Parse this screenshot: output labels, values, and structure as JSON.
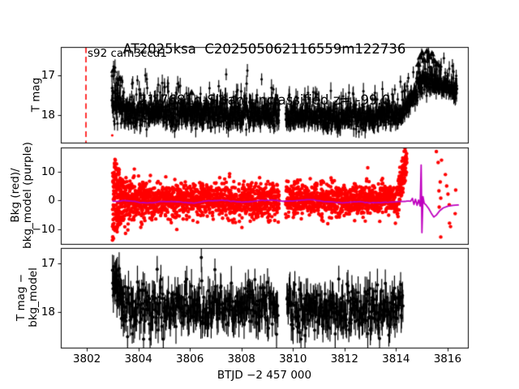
{
  "title": {
    "line1": "AT2025ksa  C202505062116559m122736",
    "line2": "21.7681g-Sloan Unclassified z= -99.0"
  },
  "colors": {
    "data_points": "#000000",
    "background_points": "#ff0000",
    "background_model": "#bf00bf",
    "marker_vline": "#ff0000",
    "spine": "#000000"
  },
  "chart_data": {
    "type": "scatter",
    "title": "AT2025ksa  C202505062116559m122736 / 21.7681g-Sloan Unclassified z= -99.0",
    "x": {
      "label": "BTJD −2 457 000",
      "ticks": [
        3802,
        3804,
        3806,
        3808,
        3810,
        3812,
        3814,
        3816
      ],
      "tick_labels": [
        "3802",
        "3804",
        "3806",
        "3808",
        "3810",
        "3812",
        "3814",
        "3816"
      ],
      "lim": [
        3800.99,
        3816.79
      ]
    },
    "panels": [
      {
        "name": "tess-magnitude",
        "ylabel_lines": [
          "T mag"
        ],
        "annotation": "s92 cam3ccd1",
        "yticks": [
          17,
          18
        ],
        "ytick_labels": [
          "17",
          "18"
        ],
        "ylim": [
          16.286,
          18.694
        ],
        "y_inverted": true,
        "vline": {
          "x": 3801.95,
          "color": "#ff0000",
          "style": "dashed"
        },
        "series": [
          {
            "name": "tess_lightcurve",
            "type": "errorbar",
            "color": "#000000",
            "marker_radius": 1.6,
            "err": 0.17,
            "spike_frac": 0.09,
            "spike_amp": [
              0.2,
              0.65
            ],
            "clamp": [
              16.35,
              18.55
            ],
            "segments": [
              {
                "t": [
                  3802.95,
                  3803.45
                ],
                "n": 70,
                "mean": [
                  17.35,
                  17.9
                ],
                "sd": [
                  0.35,
                  0.18
                ]
              },
              {
                "t": [
                  3803.45,
                  3809.45
                ],
                "n": 760,
                "mean": [
                  17.93,
                  17.96
                ],
                "sd": [
                  0.16,
                  0.16
                ]
              },
              {
                "t": [
                  3809.7,
                  3813.3
                ],
                "n": 440,
                "mean": [
                  18.04,
                  18.04
                ],
                "sd": [
                  0.13,
                  0.13
                ]
              },
              {
                "t": [
                  3813.3,
                  3814.2
                ],
                "n": 110,
                "mean": [
                  18.02,
                  17.95
                ],
                "sd": [
                  0.12,
                  0.12
                ]
              },
              {
                "t": [
                  3814.2,
                  3814.95
                ],
                "n": 95,
                "mean": [
                  17.95,
                  17.2
                ],
                "sd": [
                  0.12,
                  0.12
                ]
              },
              {
                "t": [
                  3814.95,
                  3815.55
                ],
                "n": 80,
                "mean": [
                  17.12,
                  17.08
                ],
                "sd": [
                  0.16,
                  0.16
                ]
              },
              {
                "t": [
                  3815.55,
                  3816.35
                ],
                "n": 105,
                "mean": [
                  17.18,
                  17.35
                ],
                "sd": [
                  0.1,
                  0.1
                ]
              }
            ]
          },
          {
            "name": "saturated_upper_limit_triangles",
            "type": "triangles",
            "color": "#000000",
            "size": 7,
            "points": [
              [
                3803.02,
                16.85
              ],
              [
                3803.28,
                17.06
              ],
              [
                3806.05,
                17.42
              ],
              [
                3809.33,
                17.55
              ],
              [
                3814.85,
                16.7
              ],
              [
                3814.92,
                16.52
              ],
              [
                3815.0,
                16.42
              ],
              [
                3815.08,
                16.6
              ],
              [
                3815.18,
                16.38
              ],
              [
                3815.28,
                16.52
              ],
              [
                3815.38,
                16.44
              ],
              [
                3815.48,
                16.62
              ],
              [
                3815.58,
                16.7
              ]
            ]
          },
          {
            "name": "flagged_red_point",
            "type": "dots",
            "color": "#ff0000",
            "radius": 1.6,
            "points": [
              [
                3802.97,
                18.5
              ]
            ]
          }
        ]
      },
      {
        "name": "background-vs-model",
        "ylabel_lines": [
          "Bkg (red)/",
          "bkg_model (purple)"
        ],
        "yticks": [
          10,
          0,
          -10
        ],
        "ytick_labels": [
          "10",
          "0",
          "−10"
        ],
        "ylim": [
          18.45,
          -15.07
        ],
        "y_inverted": false,
        "series": [
          {
            "name": "background_flux",
            "type": "dots",
            "color": "#ff0000",
            "radius": 2.2,
            "segments": [
              {
                "t": [
                  3802.98,
                  3803.38
                ],
                "n": 170,
                "mean": [
                  1.5,
                  0.5
                ],
                "sd": [
                  8.0,
                  3.5
                ],
                "dist": "u"
              },
              {
                "t": [
                  3803.38,
                  3804.3
                ],
                "n": 240,
                "mean": [
                  0.3,
                  0.2
                ],
                "sd": [
                  4.3,
                  3.2
                ]
              },
              {
                "t": [
                  3804.3,
                  3809.45
                ],
                "n": 1100,
                "mean": [
                  0.3,
                  0.4
                ],
                "sd": [
                  3.0,
                  3.0
                ]
              },
              {
                "t": [
                  3809.7,
                  3814.1
                ],
                "n": 950,
                "mean": [
                  0.5,
                  0.4
                ],
                "sd": [
                  2.8,
                  2.8
                ]
              },
              {
                "t": [
                  3814.1,
                  3814.4
                ],
                "n": 90,
                "mean": [
                  3.0,
                  15.0
                ],
                "sd": [
                  3.0,
                  2.5
                ]
              }
            ],
            "points": [
              [
                3815.55,
                17.2
              ],
              [
                3815.75,
                14.2
              ],
              [
                3815.62,
                13.4
              ],
              [
                3815.9,
                9.2
              ],
              [
                3815.7,
                6.6
              ],
              [
                3815.95,
                5.2
              ],
              [
                3815.65,
                3.5
              ],
              [
                3816.0,
                2.4
              ],
              [
                3815.72,
                1.0
              ],
              [
                3816.05,
                -1.3
              ],
              [
                3815.66,
                -2.1
              ],
              [
                3816.06,
                -7.7
              ],
              [
                3816.1,
                -8.9
              ],
              [
                3815.72,
                -12.5
              ],
              [
                3816.3,
                3.8
              ],
              [
                3816.28,
                -4.4
              ]
            ]
          },
          {
            "name": "background_model",
            "type": "line",
            "color": "#bf00bf",
            "width": 1.8,
            "base": {
              "t": [
                3803.0,
                3814.5
              ],
              "n": 260,
              "value": [
                0.0,
                -0.3
              ],
              "wiggle": 0.55
            },
            "vertices": [
              [
                3814.55,
                -0.1
              ],
              [
                3814.62,
                0.9
              ],
              [
                3814.68,
                -1.2
              ],
              [
                3814.74,
                0.6
              ],
              [
                3814.8,
                -1.5
              ],
              [
                3814.86,
                0.3
              ],
              [
                3814.92,
                -1.8
              ],
              [
                3814.96,
                12.5
              ],
              [
                3814.99,
                -11.0
              ],
              [
                3815.03,
                1.5
              ],
              [
                3815.08,
                -0.8
              ],
              [
                3815.15,
                -1.4
              ],
              [
                3815.25,
                -2.6
              ],
              [
                3815.35,
                -4.2
              ],
              [
                3815.45,
                -5.6
              ],
              [
                3815.55,
                -4.9
              ],
              [
                3815.68,
                -3.4
              ],
              [
                3815.82,
                -2.4
              ],
              [
                3816.0,
                -1.8
              ],
              [
                3816.2,
                -1.5
              ],
              [
                3816.4,
                -1.4
              ]
            ]
          }
        ]
      },
      {
        "name": "background-subtracted-magnitude",
        "ylabel_lines": [
          "T mag −",
          "bkg_model"
        ],
        "yticks": [
          17,
          18
        ],
        "ytick_labels": [
          "17",
          "18"
        ],
        "ylim": [
          16.683,
          18.733
        ],
        "y_inverted": true,
        "series": [
          {
            "name": "bkg_subtracted_lightcurve",
            "type": "errorbar",
            "color": "#000000",
            "marker_radius": 2.0,
            "err": 0.28,
            "spike_frac": 0.05,
            "spike_amp": [
              0.15,
              0.5
            ],
            "clamp": [
              16.75,
              18.55
            ],
            "segments": [
              {
                "t": [
                  3802.98,
                  3803.4
                ],
                "n": 40,
                "mean": [
                  17.3,
                  17.85
                ],
                "sd": [
                  0.3,
                  0.25
                ]
              },
              {
                "t": [
                  3803.4,
                  3809.4
                ],
                "n": 330,
                "mean": [
                  17.9,
                  17.92
                ],
                "sd": [
                  0.24,
                  0.24
                ]
              },
              {
                "t": [
                  3809.75,
                  3814.25
                ],
                "n": 265,
                "mean": [
                  17.98,
                  17.98
                ],
                "sd": [
                  0.24,
                  0.24
                ]
              }
            ]
          }
        ]
      }
    ]
  }
}
